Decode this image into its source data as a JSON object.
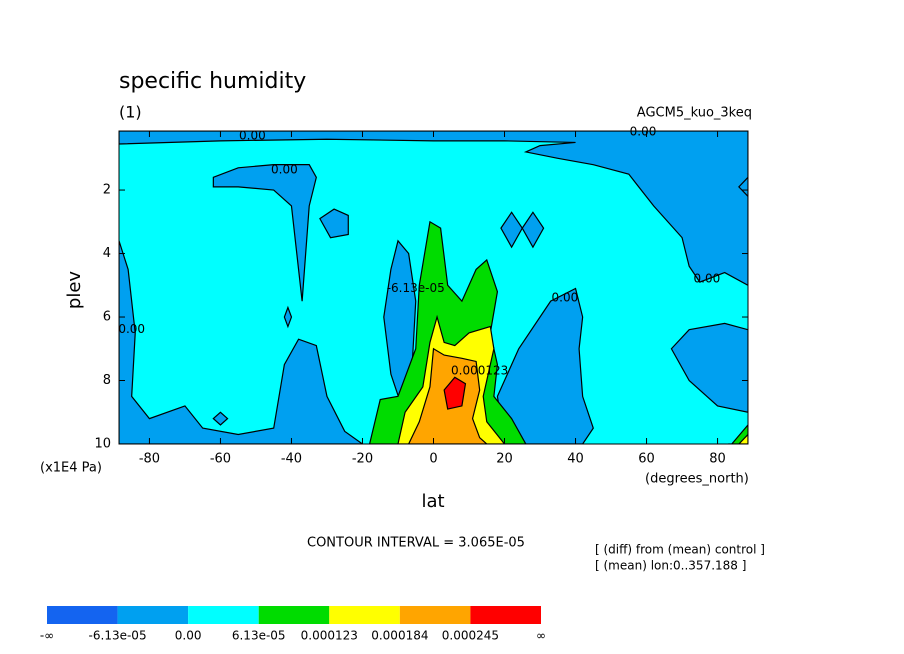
{
  "chart_data": {
    "type": "contour",
    "title": "specific humidity",
    "subtitle": "(1)",
    "dataset": "AGCM5_kuo_3keq",
    "x_label": "lat",
    "y_label": "plev",
    "x_units": "(degrees_north)",
    "y_units": "(x1E4 Pa)",
    "contour_interval": "CONTOUR INTERVAL = 3.065E-05",
    "notes": [
      "[ (diff) from (mean) control ]",
      "[ (mean) lon:0..357.188 ]"
    ],
    "xlim": [
      -88.57,
      88.57
    ],
    "ylim": [
      10,
      0.14
    ],
    "xticks": [
      -80,
      -60,
      -40,
      -20,
      0,
      20,
      40,
      60,
      80
    ],
    "yticks": [
      2,
      4,
      6,
      8,
      10
    ],
    "colorbar": {
      "colors": [
        "#1464f0",
        "#00a0f0",
        "#00ffff",
        "#00dc00",
        "#ffff00",
        "#ffa500",
        "#ff0000"
      ],
      "labels": [
        "-∞",
        "-6.13e-05",
        "0.00",
        "6.13e-05",
        "0.000123",
        "0.000184",
        "0.000245",
        "∞"
      ]
    },
    "background_band": 2,
    "regions": [
      {
        "band": 1,
        "lat": [
          -88.57,
          88.57,
          88.57,
          82,
          75,
          72,
          70,
          62,
          55,
          45,
          35,
          26,
          30,
          40,
          20,
          0,
          -30,
          -60,
          -88.57
        ],
        "plev": [
          0.14,
          0.14,
          5.0,
          4.6,
          4.9,
          4.4,
          3.5,
          2.5,
          1.5,
          1.2,
          1.0,
          0.8,
          0.6,
          0.5,
          0.45,
          0.45,
          0.4,
          0.45,
          0.55
        ]
      },
      {
        "band": 1,
        "lat": [
          -62,
          -55,
          -45,
          -35,
          -33,
          -35,
          -36,
          -37,
          -38,
          -40,
          -45,
          -55,
          -62
        ],
        "plev": [
          1.6,
          1.3,
          1.2,
          1.2,
          1.6,
          2.5,
          4.0,
          5.5,
          4.5,
          2.5,
          2.0,
          1.9,
          1.9
        ]
      },
      {
        "band": 1,
        "lat": [
          -88.57,
          -86,
          -84,
          -85,
          -80,
          -70,
          -65,
          -55,
          -45,
          -42,
          -38,
          -33,
          -30,
          -25,
          -20,
          -88.57
        ],
        "plev": [
          3.6,
          4.5,
          6.5,
          8.5,
          9.2,
          8.8,
          9.5,
          9.7,
          9.5,
          7.5,
          6.7,
          6.9,
          8.5,
          9.6,
          10,
          10
        ]
      },
      {
        "band": 1,
        "lat": [
          -32,
          -28,
          -24,
          -24,
          -29
        ],
        "plev": [
          2.9,
          2.6,
          2.8,
          3.4,
          3.5
        ]
      },
      {
        "band": 1,
        "lat": [
          -42,
          -41,
          -40,
          -41
        ],
        "plev": [
          6.0,
          5.7,
          6.0,
          6.3
        ]
      },
      {
        "band": 1,
        "lat": [
          -62,
          -60,
          -58,
          -60
        ],
        "plev": [
          9.2,
          9.0,
          9.2,
          9.4
        ]
      },
      {
        "band": 1,
        "lat": [
          -12,
          -10,
          -7,
          -5,
          -6,
          -9,
          -12,
          -14
        ],
        "plev": [
          4.5,
          3.6,
          4.0,
          5.5,
          7.5,
          8.8,
          7.8,
          6.0
        ]
      },
      {
        "band": 1,
        "lat": [
          19,
          22,
          25,
          22
        ],
        "plev": [
          3.2,
          2.7,
          3.2,
          3.8
        ]
      },
      {
        "band": 1,
        "lat": [
          25,
          28,
          31,
          28
        ],
        "plev": [
          3.2,
          2.7,
          3.2,
          3.8
        ]
      },
      {
        "band": 1,
        "lat": [
          20,
          18,
          24,
          33,
          40,
          42,
          41,
          42,
          45,
          42
        ],
        "plev": [
          10,
          8.5,
          7.0,
          5.5,
          5.1,
          6.0,
          7.0,
          8.5,
          9.5,
          10
        ]
      },
      {
        "band": 1,
        "lat": [
          67,
          72,
          82,
          88.57,
          88.57,
          80,
          72
        ],
        "plev": [
          7.0,
          6.4,
          6.2,
          6.4,
          9.0,
          8.8,
          8.0
        ]
      },
      {
        "band": 1,
        "lat": [
          88.57,
          86,
          88.57
        ],
        "plev": [
          1.6,
          1.9,
          2.2
        ]
      },
      {
        "band": 3,
        "lat": [
          -18,
          -15,
          -10,
          -5,
          -4,
          -1,
          2,
          4,
          8,
          12,
          15,
          18,
          16,
          18,
          17,
          22,
          26
        ],
        "plev": [
          10,
          8.6,
          8.5,
          7.0,
          5.0,
          3.0,
          3.2,
          5.0,
          5.5,
          4.5,
          4.2,
          5.2,
          6.5,
          7.5,
          8.5,
          9.2,
          10
        ]
      },
      {
        "band": 4,
        "lat": [
          -10,
          -8,
          -3,
          -1,
          1,
          3,
          6,
          10,
          16,
          17,
          14,
          15,
          20
        ],
        "plev": [
          10,
          9.0,
          8.2,
          6.8,
          6.0,
          6.8,
          6.9,
          6.5,
          6.3,
          7.0,
          8.5,
          9.3,
          10
        ]
      },
      {
        "band": 5,
        "lat": [
          -7,
          -4,
          -1,
          0,
          3,
          8,
          12,
          13,
          11,
          13,
          15
        ],
        "plev": [
          10,
          9.3,
          8.2,
          7.0,
          7.2,
          7.3,
          7.4,
          8.3,
          9.2,
          9.8,
          10
        ]
      },
      {
        "band": 6,
        "lat": [
          3,
          6,
          9,
          8,
          4
        ],
        "plev": [
          8.3,
          7.9,
          8.1,
          8.8,
          8.9
        ]
      },
      {
        "band": 3,
        "lat": [
          84,
          88.57,
          88.57,
          83
        ],
        "plev": [
          10,
          9.4,
          10,
          10
        ]
      },
      {
        "band": 4,
        "lat": [
          86,
          88.57,
          88.57
        ],
        "plev": [
          10,
          9.7,
          10
        ]
      }
    ],
    "contour_labels": [
      {
        "text": "0.00",
        "lat": -51,
        "plev": 0.3
      },
      {
        "text": "0.00",
        "lat": -42,
        "plev": 1.37
      },
      {
        "text": "0.00",
        "lat": 59,
        "plev": 0.17
      },
      {
        "text": "0.00",
        "lat": 77,
        "plev": 4.8
      },
      {
        "text": "0.00",
        "lat": 37,
        "plev": 5.4
      },
      {
        "text": "0.00",
        "lat": -85,
        "plev": 6.4
      },
      {
        "text": "-6.13e-05",
        "lat": -5,
        "plev": 5.1
      },
      {
        "text": "0.000123",
        "lat": 13,
        "plev": 7.7
      }
    ]
  }
}
